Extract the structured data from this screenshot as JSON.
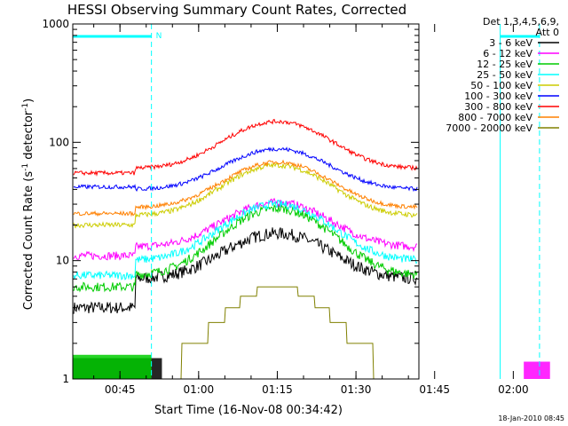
{
  "chart_data": {
    "type": "line",
    "title": "HESSI Observing Summary Count Rates, Corrected",
    "xlabel": "Start Time (16-Nov-08 00:34:42)",
    "ylabel_main": "Corrected Count Rate (s",
    "ylabel_sup1": "-1",
    "ylabel_mid": " detector",
    "ylabel_sup2": "-1",
    "ylabel_end": ")",
    "yscale": "log",
    "ylim": [
      1,
      1000
    ],
    "y_ticks": [
      {
        "value": 1,
        "label": "1"
      },
      {
        "value": 10,
        "label": "10"
      },
      {
        "value": 100,
        "label": "100"
      },
      {
        "value": 1000,
        "label": "1000"
      }
    ],
    "xlim_min": [
      36,
      102
    ],
    "x_ticks": [
      {
        "value": 45,
        "label": "00:45"
      },
      {
        "value": 60,
        "label": "01:00"
      },
      {
        "value": 75,
        "label": "01:15"
      },
      {
        "value": 90,
        "label": "01:30"
      },
      {
        "value": 105,
        "label": "01:45"
      },
      {
        "value": 120,
        "label": "02:00"
      }
    ],
    "x_minor_step": 5,
    "legend": {
      "title_line1": "Det 1,3,4,5,6,9,",
      "title_line2": "Att 0",
      "placement": "right"
    },
    "series": [
      {
        "name": "3 - 6 keV",
        "color": "#000000",
        "base": 7.0,
        "amp": 10.0,
        "noise": 0.12,
        "early": 4.0,
        "shadow": {
          "start": 36,
          "end": 53,
          "value": 1.5
        },
        "late_bump": 10.0
      },
      {
        "name": "6 - 12 keV",
        "color": "#ff00ff",
        "base": 13.0,
        "amp": 18.0,
        "noise": 0.08,
        "early": 11.0,
        "shadow": {
          "start": 122,
          "end": 127,
          "value": 1.4
        },
        "late_bump": 18.0
      },
      {
        "name": "12 - 25 keV",
        "color": "#00cc00",
        "base": 7.5,
        "amp": 20.0,
        "noise": 0.09,
        "early": 6.0,
        "shadow": {
          "start": 36,
          "end": 51,
          "value": 1.6
        },
        "late_bump": 14.0
      },
      {
        "name": "25 - 50 keV",
        "color": "#00ffff",
        "base": 10.0,
        "amp": 20.0,
        "noise": 0.08,
        "early": 7.5,
        "late_bump": 12.0
      },
      {
        "name": "50 - 100 keV",
        "color": "#cccc00",
        "base": 24.0,
        "amp": 40.0,
        "noise": 0.05,
        "early": 20.0,
        "late_bump": 32.0
      },
      {
        "name": "100 - 300 keV",
        "color": "#0000ff",
        "base": 40.0,
        "amp": 48.0,
        "noise": 0.04,
        "early": 42.0,
        "late_bump": 60.0
      },
      {
        "name": "300 - 800 keV",
        "color": "#ff0000",
        "base": 60.0,
        "amp": 90.0,
        "noise": 0.04,
        "early": 55.0,
        "late_bump": 88.0
      },
      {
        "name": "800 - 7000 keV",
        "color": "#ff8000",
        "base": 28.0,
        "amp": 40.0,
        "noise": 0.04,
        "early": 25.0,
        "late_bump": 45.0
      },
      {
        "name": "7000 - 20000 keV",
        "color": "#808000",
        "base": 1.0,
        "amp": 5.0,
        "noise": 0.0,
        "early": 1.0,
        "late_bump": 3.5
      }
    ],
    "markers": {
      "color": "#00ffff",
      "solid_lines_min": [
        36,
        117.5
      ],
      "dashed_lines_min": [
        51,
        125
      ],
      "bar_label": "N"
    }
  },
  "footer": {
    "timestamp": "18-Jan-2010 08:45"
  }
}
